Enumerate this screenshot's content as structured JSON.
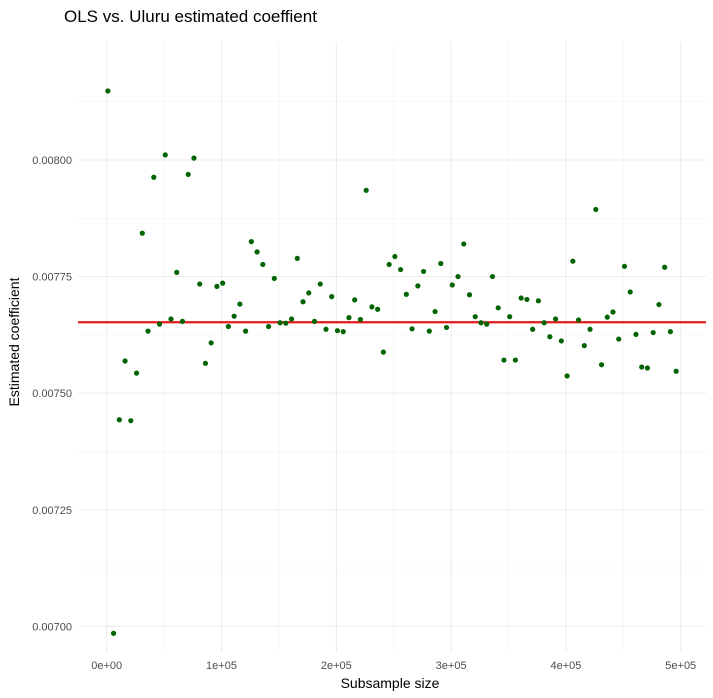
{
  "chart_data": {
    "type": "scatter",
    "title": "OLS vs. Uluru estimated coeffient",
    "xlabel": "Subsample size",
    "ylabel": "Estimated coefficient",
    "xlim": [
      -25000,
      522000
    ],
    "ylim": [
      0.006945,
      0.008253
    ],
    "x_ticks": [
      0,
      100000,
      200000,
      300000,
      400000,
      500000
    ],
    "x_tick_labels": [
      "0e+00",
      "1e+05",
      "2e+05",
      "3e+05",
      "4e+05",
      "5e+05"
    ],
    "y_ticks": [
      0.007,
      0.00725,
      0.0075,
      0.00775,
      0.008
    ],
    "y_tick_labels": [
      "0.00700",
      "0.00725",
      "0.00750",
      "0.00775",
      "0.00800"
    ],
    "grid": true,
    "legend": "none",
    "reference_line": {
      "y": 0.007652,
      "color": "#e41a1c"
    },
    "point_color": "#006400",
    "points": [
      [
        1000,
        0.008148
      ],
      [
        6000,
        0.006985
      ],
      [
        11000,
        0.007443
      ],
      [
        16000,
        0.007569
      ],
      [
        21000,
        0.007441
      ],
      [
        26000,
        0.007543
      ],
      [
        31000,
        0.007843
      ],
      [
        36000,
        0.007633
      ],
      [
        41000,
        0.007963
      ],
      [
        46000,
        0.007648
      ],
      [
        51000,
        0.008011
      ],
      [
        56000,
        0.007659
      ],
      [
        61000,
        0.007759
      ],
      [
        66000,
        0.007654
      ],
      [
        71000,
        0.007969
      ],
      [
        76000,
        0.008004
      ],
      [
        81000,
        0.007734
      ],
      [
        86000,
        0.007564
      ],
      [
        91000,
        0.007608
      ],
      [
        96000,
        0.007729
      ],
      [
        101000,
        0.007736
      ],
      [
        106000,
        0.007643
      ],
      [
        111000,
        0.007665
      ],
      [
        116000,
        0.007691
      ],
      [
        121000,
        0.007633
      ],
      [
        126000,
        0.007825
      ],
      [
        131000,
        0.007803
      ],
      [
        136000,
        0.007776
      ],
      [
        141000,
        0.007643
      ],
      [
        146000,
        0.007746
      ],
      [
        151000,
        0.007651
      ],
      [
        156000,
        0.00765
      ],
      [
        161000,
        0.007659
      ],
      [
        166000,
        0.007789
      ],
      [
        171000,
        0.007696
      ],
      [
        176000,
        0.007715
      ],
      [
        181000,
        0.007654
      ],
      [
        186000,
        0.007734
      ],
      [
        191000,
        0.007637
      ],
      [
        196000,
        0.007707
      ],
      [
        201000,
        0.007634
      ],
      [
        206000,
        0.007632
      ],
      [
        211000,
        0.007662
      ],
      [
        216000,
        0.0077
      ],
      [
        221000,
        0.007658
      ],
      [
        226000,
        0.007935
      ],
      [
        231000,
        0.007685
      ],
      [
        236000,
        0.00768
      ],
      [
        241000,
        0.007588
      ],
      [
        246000,
        0.007776
      ],
      [
        251000,
        0.007793
      ],
      [
        256000,
        0.007765
      ],
      [
        261000,
        0.007712
      ],
      [
        266000,
        0.007638
      ],
      [
        271000,
        0.00773
      ],
      [
        276000,
        0.007761
      ],
      [
        281000,
        0.007633
      ],
      [
        286000,
        0.007675
      ],
      [
        291000,
        0.007778
      ],
      [
        296000,
        0.007641
      ],
      [
        301000,
        0.007732
      ],
      [
        306000,
        0.00775
      ],
      [
        311000,
        0.00782
      ],
      [
        316000,
        0.007711
      ],
      [
        321000,
        0.007664
      ],
      [
        326000,
        0.007651
      ],
      [
        331000,
        0.007648
      ],
      [
        336000,
        0.00775
      ],
      [
        341000,
        0.007683
      ],
      [
        346000,
        0.007571
      ],
      [
        351000,
        0.007664
      ],
      [
        356000,
        0.007571
      ],
      [
        361000,
        0.007704
      ],
      [
        366000,
        0.007701
      ],
      [
        371000,
        0.007637
      ],
      [
        376000,
        0.007698
      ],
      [
        381000,
        0.007651
      ],
      [
        386000,
        0.007621
      ],
      [
        391000,
        0.007659
      ],
      [
        396000,
        0.007612
      ],
      [
        401000,
        0.007537
      ],
      [
        406000,
        0.007783
      ],
      [
        411000,
        0.007657
      ],
      [
        416000,
        0.007602
      ],
      [
        421000,
        0.007637
      ],
      [
        426000,
        0.007894
      ],
      [
        431000,
        0.007561
      ],
      [
        436000,
        0.007663
      ],
      [
        441000,
        0.007674
      ],
      [
        446000,
        0.007616
      ],
      [
        451000,
        0.007772
      ],
      [
        456000,
        0.007717
      ],
      [
        461000,
        0.007626
      ],
      [
        466000,
        0.007556
      ],
      [
        471000,
        0.007554
      ],
      [
        476000,
        0.00763
      ],
      [
        481000,
        0.00769
      ],
      [
        486000,
        0.00777
      ],
      [
        491000,
        0.007632
      ],
      [
        496000,
        0.007547
      ]
    ]
  }
}
